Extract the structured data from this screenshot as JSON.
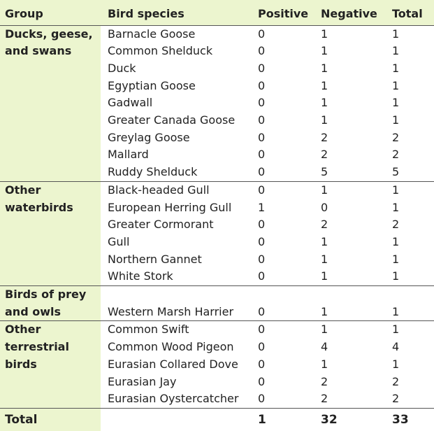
{
  "headers": {
    "group": "Group",
    "species": "Bird species",
    "positive": "Positive",
    "negative": "Negative",
    "total": "Total"
  },
  "groups": [
    {
      "name": "Ducks, geese, and swans",
      "rows": [
        {
          "species": "Barnacle Goose",
          "positive": "0",
          "negative": "1",
          "total": "1"
        },
        {
          "species": "Common Shelduck",
          "positive": "0",
          "negative": "1",
          "total": "1"
        },
        {
          "species": "Duck",
          "positive": "0",
          "negative": "1",
          "total": "1"
        },
        {
          "species": "Egyptian Goose",
          "positive": "0",
          "negative": "1",
          "total": "1"
        },
        {
          "species": "Gadwall",
          "positive": "0",
          "negative": "1",
          "total": "1"
        },
        {
          "species": "Greater Canada Goose",
          "positive": "0",
          "negative": "1",
          "total": "1"
        },
        {
          "species": "Greylag Goose",
          "positive": "0",
          "negative": "2",
          "total": "2"
        },
        {
          "species": "Mallard",
          "positive": "0",
          "negative": "2",
          "total": "2"
        },
        {
          "species": "Ruddy Shelduck",
          "positive": "0",
          "negative": "5",
          "total": "5"
        }
      ]
    },
    {
      "name": "Other waterbirds",
      "rows": [
        {
          "species": "Black-headed Gull",
          "positive": "0",
          "negative": "1",
          "total": "1"
        },
        {
          "species": "European Herring Gull",
          "positive": "1",
          "negative": "0",
          "total": "1"
        },
        {
          "species": "Greater Cormorant",
          "positive": "0",
          "negative": "2",
          "total": "2"
        },
        {
          "species": "Gull",
          "positive": "0",
          "negative": "1",
          "total": "1"
        },
        {
          "species": "Northern Gannet",
          "positive": "0",
          "negative": "1",
          "total": "1"
        },
        {
          "species": "White Stork",
          "positive": "0",
          "negative": "1",
          "total": "1"
        }
      ]
    },
    {
      "name": "Birds of prey and owls",
      "rows": [
        {
          "species": "Western Marsh Harrier",
          "positive": "0",
          "negative": "1",
          "total": "1"
        }
      ]
    },
    {
      "name": "Other terrestrial birds",
      "rows": [
        {
          "species": "Common Swift",
          "positive": "0",
          "negative": "1",
          "total": "1"
        },
        {
          "species": "Common Wood Pigeon",
          "positive": "0",
          "negative": "4",
          "total": "4"
        },
        {
          "species": "Eurasian Collared Dove",
          "positive": "0",
          "negative": "1",
          "total": "1"
        },
        {
          "species": "Eurasian Jay",
          "positive": "0",
          "negative": "2",
          "total": "2"
        },
        {
          "species": "Eurasian Oystercatcher",
          "positive": "0",
          "negative": "2",
          "total": "2"
        }
      ]
    }
  ],
  "totals": {
    "label": "Total",
    "positive": "1",
    "negative": "32",
    "total": "33"
  }
}
